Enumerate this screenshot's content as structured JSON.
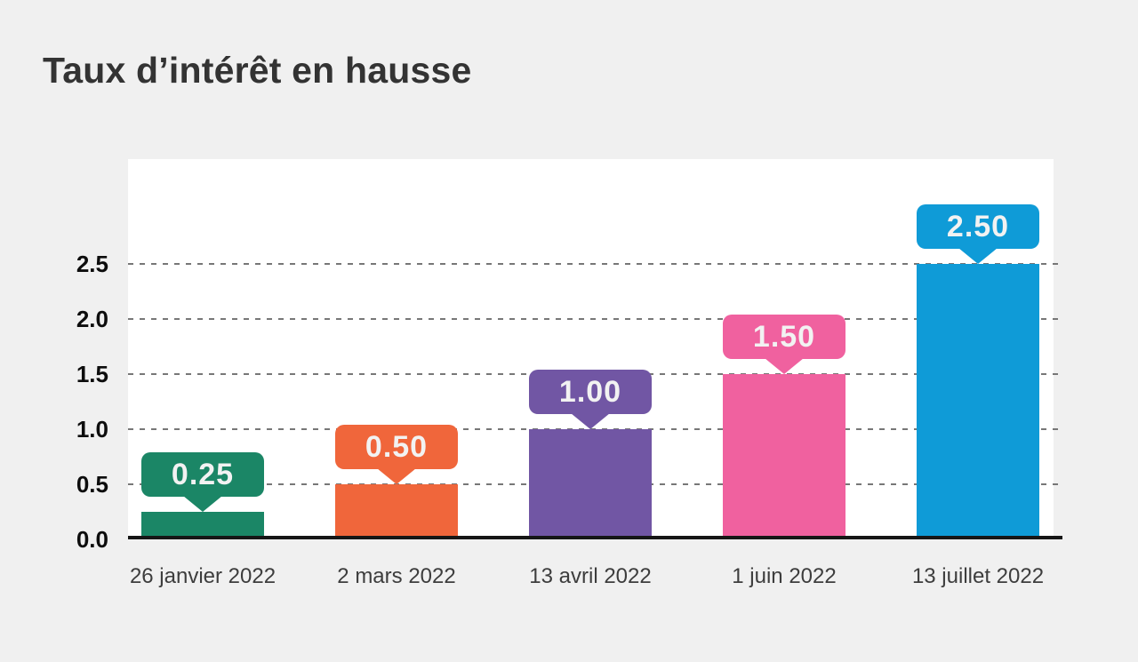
{
  "page": {
    "background_color": "#f0f0f0",
    "panel_color": "#ffffff"
  },
  "chart_data": {
    "type": "bar",
    "title": "Taux d’intérêt en hausse",
    "categories": [
      "26 janvier 2022",
      "2 mars 2022",
      "13 avril 2022",
      "1 juin 2022",
      "13 juillet 2022"
    ],
    "values": [
      0.25,
      0.5,
      1.0,
      1.5,
      2.5
    ],
    "value_labels": [
      "0.25",
      "0.50",
      "1.00",
      "1.50",
      "2.50"
    ],
    "bar_colors": [
      "#1b8666",
      "#f0663b",
      "#7156a4",
      "#f0619f",
      "#0f9bd7"
    ],
    "y_ticks": [
      "0.0",
      "0.5",
      "1.0",
      "1.5",
      "2.0",
      "2.5"
    ],
    "ylim": [
      0,
      2.5
    ],
    "xlabel": "",
    "ylabel": "",
    "grid": "horizontal-dashed",
    "legend": "none",
    "value_label_style": "speech-bubble-above-bar",
    "bubble_text_color": "#f2f2f2",
    "axis_color": "#161616",
    "gridline_color": "#777777"
  }
}
